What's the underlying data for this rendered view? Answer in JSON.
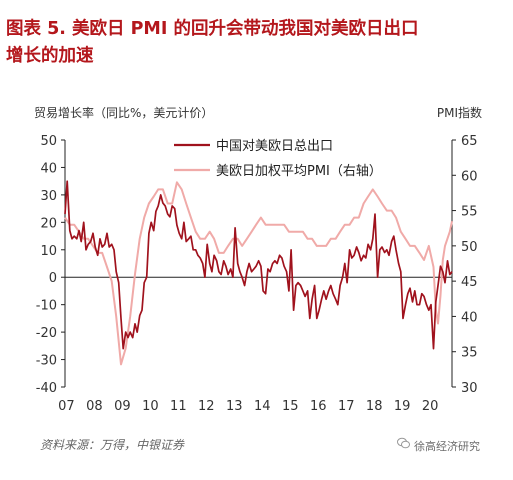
{
  "figure": {
    "title_line1": "图表 5.  美欧日 PMI 的回升会带动我国对美欧日出口",
    "title_line2": "增长的加速",
    "source": "资料来源：万得，中银证券",
    "watermark": "徐高经济研究"
  },
  "chart_data": {
    "type": "line",
    "left_axis_label": "贸易增长率（同比%，美元计价）",
    "right_axis_label": "PMI指数",
    "left_ylim": [
      -40,
      50
    ],
    "left_ticks": [
      "50",
      "40",
      "30",
      "20",
      "10",
      "0",
      "-10",
      "-20",
      "-30",
      "-40"
    ],
    "right_ylim": [
      30,
      65
    ],
    "right_ticks": [
      "65",
      "60",
      "55",
      "50",
      "45",
      "40",
      "35",
      "30"
    ],
    "x_ticks": [
      "07",
      "08",
      "09",
      "10",
      "11",
      "12",
      "13",
      "14",
      "15",
      "16",
      "17",
      "18",
      "19",
      "20"
    ],
    "x_range": [
      2007.0,
      2020.83
    ],
    "grid": false,
    "legend_position": "top-center",
    "colors": {
      "export": "#a0121d",
      "pmi": "#f0aaa8",
      "text": "#333333"
    },
    "series": [
      {
        "name": "中国对美欧日总出口",
        "axis": "left",
        "x": [
          2007.0,
          2007.08,
          2007.17,
          2007.25,
          2007.33,
          2007.42,
          2007.5,
          2007.58,
          2007.67,
          2007.75,
          2007.83,
          2007.92,
          2008.0,
          2008.08,
          2008.17,
          2008.25,
          2008.33,
          2008.42,
          2008.5,
          2008.58,
          2008.67,
          2008.75,
          2008.83,
          2008.92,
          2009.0,
          2009.08,
          2009.17,
          2009.25,
          2009.33,
          2009.42,
          2009.5,
          2009.58,
          2009.67,
          2009.75,
          2009.83,
          2009.92,
          2010.0,
          2010.08,
          2010.17,
          2010.25,
          2010.33,
          2010.42,
          2010.5,
          2010.58,
          2010.67,
          2010.75,
          2010.83,
          2010.92,
          2011.0,
          2011.08,
          2011.17,
          2011.25,
          2011.33,
          2011.42,
          2011.5,
          2011.58,
          2011.67,
          2011.75,
          2011.83,
          2011.92,
          2012.0,
          2012.08,
          2012.17,
          2012.25,
          2012.33,
          2012.42,
          2012.5,
          2012.58,
          2012.67,
          2012.75,
          2012.83,
          2012.92,
          2013.0,
          2013.08,
          2013.17,
          2013.25,
          2013.33,
          2013.42,
          2013.5,
          2013.58,
          2013.67,
          2013.75,
          2013.83,
          2013.92,
          2014.0,
          2014.08,
          2014.17,
          2014.25,
          2014.33,
          2014.42,
          2014.5,
          2014.58,
          2014.67,
          2014.75,
          2014.83,
          2014.92,
          2015.0,
          2015.08,
          2015.17,
          2015.25,
          2015.33,
          2015.42,
          2015.5,
          2015.58,
          2015.67,
          2015.75,
          2015.83,
          2015.92,
          2016.0,
          2016.08,
          2016.17,
          2016.25,
          2016.33,
          2016.42,
          2016.5,
          2016.58,
          2016.67,
          2016.75,
          2016.83,
          2016.92,
          2017.0,
          2017.08,
          2017.17,
          2017.25,
          2017.33,
          2017.42,
          2017.5,
          2017.58,
          2017.67,
          2017.75,
          2017.83,
          2017.92,
          2018.0,
          2018.08,
          2018.17,
          2018.25,
          2018.33,
          2018.42,
          2018.5,
          2018.58,
          2018.67,
          2018.75,
          2018.83,
          2018.92,
          2019.0,
          2019.08,
          2019.17,
          2019.25,
          2019.33,
          2019.42,
          2019.5,
          2019.58,
          2019.67,
          2019.75,
          2019.83,
          2019.92,
          2020.0,
          2020.08,
          2020.17,
          2020.25,
          2020.33,
          2020.42,
          2020.5,
          2020.58,
          2020.67,
          2020.75,
          2020.83
        ],
        "values": [
          23,
          35,
          17,
          14,
          15,
          14,
          17,
          13,
          20,
          10,
          12,
          13,
          16,
          11,
          8,
          14,
          11,
          12,
          16,
          11,
          12,
          10,
          2,
          -2,
          -15,
          -26,
          -20,
          -22,
          -20,
          -22,
          -17,
          -20,
          -14,
          -12,
          -2,
          0,
          16,
          20,
          17,
          24,
          26,
          30,
          27,
          26,
          23,
          22,
          26,
          25,
          19,
          16,
          14,
          20,
          13,
          14,
          15,
          10,
          10,
          8,
          7,
          5,
          0,
          12,
          5,
          2,
          8,
          6,
          2,
          1,
          6,
          4,
          1,
          3,
          0,
          18,
          5,
          2,
          0,
          -3,
          2,
          5,
          2,
          3,
          4,
          6,
          4,
          -5,
          -6,
          3,
          2,
          5,
          6,
          5,
          8,
          7,
          4,
          2,
          -5,
          10,
          -12,
          -3,
          -2,
          -3,
          -5,
          -7,
          -5,
          -15,
          -8,
          -3,
          -15,
          -12,
          -8,
          -5,
          -8,
          -5,
          -3,
          -6,
          -8,
          -10,
          -3,
          0,
          5,
          -2,
          10,
          7,
          8,
          11,
          9,
          6,
          8,
          7,
          12,
          10,
          14,
          23,
          0,
          10,
          11,
          9,
          10,
          8,
          13,
          15,
          10,
          5,
          2,
          -15,
          -10,
          -6,
          -4,
          -9,
          -5,
          -10,
          -10,
          -6,
          -7,
          -10,
          -12,
          -10,
          -26,
          -9,
          -3,
          4,
          2,
          -2,
          6,
          1,
          2
        ]
      },
      {
        "name": "美欧日加权平均PMI（右轴）",
        "axis": "right",
        "x": [
          2007.0,
          2007.17,
          2007.33,
          2007.5,
          2007.67,
          2007.83,
          2008.0,
          2008.17,
          2008.33,
          2008.5,
          2008.67,
          2008.83,
          2009.0,
          2009.17,
          2009.33,
          2009.5,
          2009.67,
          2009.83,
          2010.0,
          2010.17,
          2010.33,
          2010.5,
          2010.67,
          2010.83,
          2011.0,
          2011.17,
          2011.33,
          2011.5,
          2011.67,
          2011.83,
          2012.0,
          2012.17,
          2012.33,
          2012.5,
          2012.67,
          2012.83,
          2013.0,
          2013.17,
          2013.33,
          2013.5,
          2013.67,
          2013.83,
          2014.0,
          2014.17,
          2014.33,
          2014.5,
          2014.67,
          2014.83,
          2015.0,
          2015.17,
          2015.33,
          2015.5,
          2015.67,
          2015.83,
          2016.0,
          2016.17,
          2016.33,
          2016.5,
          2016.67,
          2016.83,
          2017.0,
          2017.17,
          2017.33,
          2017.5,
          2017.67,
          2017.83,
          2018.0,
          2018.17,
          2018.33,
          2018.5,
          2018.67,
          2018.83,
          2019.0,
          2019.17,
          2019.33,
          2019.5,
          2019.67,
          2019.83,
          2020.0,
          2020.17,
          2020.25,
          2020.33,
          2020.42,
          2020.5,
          2020.58,
          2020.75,
          2020.83
        ],
        "values": [
          54,
          53,
          53,
          52,
          51,
          51,
          50,
          49,
          49,
          47,
          45,
          40,
          33.2,
          35.5,
          40,
          46,
          51,
          54,
          56,
          57,
          58,
          58,
          56,
          56,
          59,
          58,
          56,
          54,
          52,
          51,
          51,
          52,
          51,
          49,
          49,
          50,
          51,
          51,
          50,
          51,
          52,
          53,
          54,
          53,
          53,
          53,
          53,
          53,
          52,
          52,
          52,
          52,
          51,
          51,
          50,
          50,
          50,
          51,
          51,
          52,
          53,
          53,
          54,
          54,
          56,
          57,
          58,
          57,
          56,
          55,
          55,
          54,
          52,
          51,
          50,
          50,
          49,
          48,
          50,
          47,
          41,
          39,
          43,
          48,
          50,
          52,
          53.5
        ]
      }
    ]
  }
}
